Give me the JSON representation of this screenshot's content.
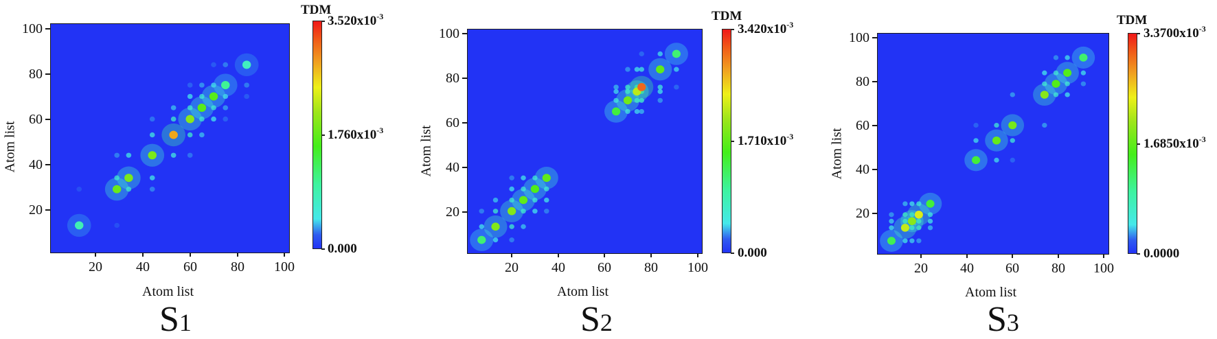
{
  "figure": {
    "panels": [
      {
        "id": "S1",
        "caption_main": "S",
        "caption_sub": "1",
        "xlabel": "Atom list",
        "ylabel": "Atom list",
        "xticks": [
          "20",
          "40",
          "60",
          "80",
          "100"
        ],
        "yticks": [
          "20",
          "40",
          "60",
          "80",
          "100"
        ],
        "colorbar": {
          "title": "TDM",
          "max_label": "3.520x10",
          "mid_label": "1.760x10",
          "min_label": "0.000",
          "exponent": "-3"
        }
      },
      {
        "id": "S2",
        "caption_main": "S",
        "caption_sub": "2",
        "xlabel": "Atom list",
        "ylabel": "Atom list",
        "xticks": [
          "20",
          "40",
          "60",
          "80",
          "100"
        ],
        "yticks": [
          "20",
          "40",
          "60",
          "80",
          "100"
        ],
        "colorbar": {
          "title": "TDM",
          "max_label": "3.420x10",
          "mid_label": "1.710x10",
          "min_label": "0.000",
          "exponent": "-3"
        }
      },
      {
        "id": "S3",
        "caption_main": "S",
        "caption_sub": "3",
        "xlabel": "Atom list",
        "ylabel": "Atom list",
        "xticks": [
          "20",
          "40",
          "60",
          "80",
          "100"
        ],
        "yticks": [
          "20",
          "40",
          "60",
          "80",
          "100"
        ],
        "colorbar": {
          "title": "TDM",
          "max_label": "3.3700x10",
          "mid_label": "1.6850x10",
          "min_label": "0.0000",
          "exponent": "-3"
        }
      }
    ],
    "colors": {
      "background_low": "#2233f5",
      "cyan": "#45e8ea",
      "green": "#44ee1a",
      "yellow": "#eef018",
      "red": "#f01818"
    }
  },
  "chart_data": [
    {
      "type": "heatmap",
      "title": "S1",
      "xlabel": "Atom list",
      "ylabel": "Atom list",
      "xlim": [
        1,
        102
      ],
      "ylim": [
        1,
        102
      ],
      "xticks": [
        20,
        40,
        60,
        80,
        100
      ],
      "yticks": [
        20,
        40,
        60,
        80,
        100
      ],
      "colorbar": {
        "label": "TDM",
        "min": 0.0,
        "max": 0.00352,
        "ticks": [
          0.0,
          0.00176,
          0.00352
        ]
      },
      "description": "Transition density matrix concentrated along the diagonal from ~atom 5 to ~90; strongest (green/yellow, ~1.8e-3-2.5e-3) hot spots near atoms 30-36, 42-48, 52-54, 58-62 and 68-72; rest ~0.",
      "hotspots": [
        {
          "x": 13,
          "y": 13,
          "value": 0.0009
        },
        {
          "x": 29,
          "y": 29,
          "value": 0.0018
        },
        {
          "x": 34,
          "y": 34,
          "value": 0.0019
        },
        {
          "x": 44,
          "y": 44,
          "value": 0.0019
        },
        {
          "x": 53,
          "y": 53,
          "value": 0.0028
        },
        {
          "x": 60,
          "y": 60,
          "value": 0.002
        },
        {
          "x": 65,
          "y": 65,
          "value": 0.0017
        },
        {
          "x": 70,
          "y": 70,
          "value": 0.0017
        },
        {
          "x": 75,
          "y": 75,
          "value": 0.0011
        },
        {
          "x": 84,
          "y": 84,
          "value": 0.0008
        }
      ]
    },
    {
      "type": "heatmap",
      "title": "S2",
      "xlabel": "Atom list",
      "ylabel": "Atom list",
      "xlim": [
        1,
        102
      ],
      "ylim": [
        1,
        102
      ],
      "xticks": [
        20,
        40,
        60,
        80,
        100
      ],
      "yticks": [
        20,
        40,
        60,
        80,
        100
      ],
      "colorbar": {
        "label": "TDM",
        "min": 0.0,
        "max": 0.00342,
        "ticks": [
          0.0,
          0.00171,
          0.00342
        ]
      },
      "description": "Two diagonal blocks: lower block atoms ~5-45 (peaks near 13, 20, 25, 30-36) and upper block atoms ~53-92 (peaks near 70-78, strongest ~76).",
      "hotspots": [
        {
          "x": 7,
          "y": 7,
          "value": 0.0012
        },
        {
          "x": 13,
          "y": 13,
          "value": 0.0019
        },
        {
          "x": 20,
          "y": 20,
          "value": 0.0019
        },
        {
          "x": 25,
          "y": 25,
          "value": 0.0017
        },
        {
          "x": 30,
          "y": 30,
          "value": 0.0016
        },
        {
          "x": 35,
          "y": 35,
          "value": 0.0017
        },
        {
          "x": 65,
          "y": 65,
          "value": 0.0014
        },
        {
          "x": 70,
          "y": 70,
          "value": 0.0018
        },
        {
          "x": 74,
          "y": 74,
          "value": 0.0022
        },
        {
          "x": 76,
          "y": 76,
          "value": 0.003
        },
        {
          "x": 84,
          "y": 84,
          "value": 0.0017
        },
        {
          "x": 91,
          "y": 91,
          "value": 0.0012
        }
      ]
    },
    {
      "type": "heatmap",
      "title": "S3",
      "xlabel": "Atom list",
      "ylabel": "Atom list",
      "xlim": [
        1,
        102
      ],
      "ylim": [
        1,
        102
      ],
      "xticks": [
        20,
        40,
        60,
        80,
        100
      ],
      "yticks": [
        20,
        40,
        60,
        80,
        100
      ],
      "colorbar": {
        "label": "TDM",
        "min": 0.0,
        "max": 0.00337,
        "ticks": [
          0.0,
          0.001685,
          0.00337
        ]
      },
      "description": "Three diagonal blocks: atoms ~3-26 (strongest, peaks ~13-20), ~35-65 (peaks near 44, 53, 60), and ~69-92 (peaks near 74-84).",
      "hotspots": [
        {
          "x": 7,
          "y": 7,
          "value": 0.0013
        },
        {
          "x": 13,
          "y": 13,
          "value": 0.0022
        },
        {
          "x": 16,
          "y": 16,
          "value": 0.0019
        },
        {
          "x": 19,
          "y": 19,
          "value": 0.0023
        },
        {
          "x": 24,
          "y": 24,
          "value": 0.0014
        },
        {
          "x": 44,
          "y": 44,
          "value": 0.0014
        },
        {
          "x": 53,
          "y": 53,
          "value": 0.0017
        },
        {
          "x": 60,
          "y": 60,
          "value": 0.0018
        },
        {
          "x": 74,
          "y": 74,
          "value": 0.0019
        },
        {
          "x": 79,
          "y": 79,
          "value": 0.0016
        },
        {
          "x": 84,
          "y": 84,
          "value": 0.0016
        },
        {
          "x": 91,
          "y": 91,
          "value": 0.0012
        }
      ]
    }
  ]
}
